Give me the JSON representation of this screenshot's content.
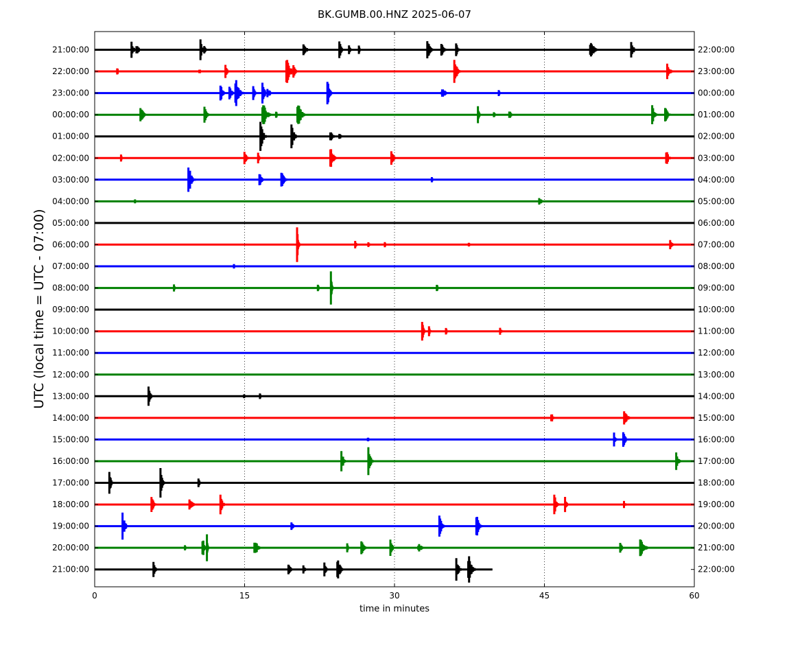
{
  "chart_data": {
    "type": "line",
    "title": "BK.GUMB.00.HNZ 2025-06-07",
    "xlabel": "time in minutes",
    "ylabel": "UTC (local time = UTC - 07:00)",
    "xlim": [
      0,
      60
    ],
    "x_ticks": [
      0,
      15,
      30,
      45,
      60
    ],
    "x_tick_labels": [
      "0",
      "15",
      "30",
      "45",
      "60"
    ],
    "grid": "vertical dotted lines at 15, 30, 45",
    "color_cycle": [
      "#000000",
      "#ff0000",
      "#0000ff",
      "#008000"
    ],
    "rows": [
      {
        "left_label": "21:00:00",
        "right_label": "22:00:00",
        "end_minute": 60,
        "events": [
          {
            "t": 3.6,
            "amp": 0.25,
            "dur": 0.6
          },
          {
            "t": 4.1,
            "amp": 0.15,
            "dur": 0.8
          },
          {
            "t": 10.5,
            "amp": 0.35,
            "dur": 0.5
          },
          {
            "t": 10.9,
            "amp": 0.15,
            "dur": 0.4
          },
          {
            "t": 20.8,
            "amp": 0.25,
            "dur": 0.7
          },
          {
            "t": 24.4,
            "amp": 0.4,
            "dur": 0.5
          },
          {
            "t": 25.4,
            "amp": 0.2,
            "dur": 0.3
          },
          {
            "t": 26.4,
            "amp": 0.2,
            "dur": 0.2
          },
          {
            "t": 33.2,
            "amp": 0.3,
            "dur": 0.8
          },
          {
            "t": 34.6,
            "amp": 0.25,
            "dur": 0.7
          },
          {
            "t": 36.1,
            "amp": 0.35,
            "dur": 0.4
          },
          {
            "t": 49.5,
            "amp": 0.3,
            "dur": 0.9
          },
          {
            "t": 53.6,
            "amp": 0.35,
            "dur": 0.6
          }
        ]
      },
      {
        "left_label": "22:00:00",
        "right_label": "23:00:00",
        "end_minute": 60,
        "events": [
          {
            "t": 2.2,
            "amp": 0.15,
            "dur": 0.3
          },
          {
            "t": 10.4,
            "amp": 0.1,
            "dur": 0.4
          },
          {
            "t": 13.0,
            "amp": 0.2,
            "dur": 0.6
          },
          {
            "t": 19.1,
            "amp": 0.45,
            "dur": 0.9
          },
          {
            "t": 19.8,
            "amp": 0.2,
            "dur": 0.6
          },
          {
            "t": 35.9,
            "amp": 0.45,
            "dur": 0.7
          },
          {
            "t": 57.2,
            "amp": 0.25,
            "dur": 0.7
          }
        ]
      },
      {
        "left_label": "23:00:00",
        "right_label": "00:00:00",
        "end_minute": 60,
        "events": [
          {
            "t": 12.5,
            "amp": 0.35,
            "dur": 0.6
          },
          {
            "t": 13.4,
            "amp": 0.3,
            "dur": 0.6
          },
          {
            "t": 14.0,
            "amp": 0.5,
            "dur": 0.9
          },
          {
            "t": 15.8,
            "amp": 0.25,
            "dur": 0.4
          },
          {
            "t": 16.7,
            "amp": 0.35,
            "dur": 0.6
          },
          {
            "t": 17.2,
            "amp": 0.2,
            "dur": 0.7
          },
          {
            "t": 23.2,
            "amp": 0.45,
            "dur": 0.6
          },
          {
            "t": 34.6,
            "amp": 0.12,
            "dur": 1.5
          },
          {
            "t": 40.4,
            "amp": 0.18,
            "dur": 0.2
          }
        ]
      },
      {
        "left_label": "00:00:00",
        "right_label": "01:00:00",
        "end_minute": 60,
        "events": [
          {
            "t": 4.5,
            "amp": 0.25,
            "dur": 0.8
          },
          {
            "t": 10.9,
            "amp": 0.3,
            "dur": 0.6
          },
          {
            "t": 16.7,
            "amp": 0.4,
            "dur": 1.0
          },
          {
            "t": 18.1,
            "amp": 0.15,
            "dur": 0.3
          },
          {
            "t": 20.2,
            "amp": 0.4,
            "dur": 1.0
          },
          {
            "t": 38.3,
            "amp": 0.3,
            "dur": 0.3
          },
          {
            "t": 39.9,
            "amp": 0.15,
            "dur": 0.3
          },
          {
            "t": 41.4,
            "amp": 0.15,
            "dur": 0.6
          },
          {
            "t": 55.7,
            "amp": 0.35,
            "dur": 0.6
          },
          {
            "t": 57.0,
            "amp": 0.25,
            "dur": 0.8
          }
        ]
      },
      {
        "left_label": "01:00:00",
        "right_label": "02:00:00",
        "end_minute": 60,
        "events": [
          {
            "t": 16.5,
            "amp": 0.5,
            "dur": 0.7
          },
          {
            "t": 19.6,
            "amp": 0.4,
            "dur": 0.7
          },
          {
            "t": 23.5,
            "amp": 0.15,
            "dur": 0.8
          },
          {
            "t": 24.4,
            "amp": 0.12,
            "dur": 0.5
          }
        ]
      },
      {
        "left_label": "02:00:00",
        "right_label": "03:00:00",
        "end_minute": 60,
        "events": [
          {
            "t": 2.6,
            "amp": 0.15,
            "dur": 0.2
          },
          {
            "t": 14.9,
            "amp": 0.35,
            "dur": 0.5
          },
          {
            "t": 16.3,
            "amp": 0.2,
            "dur": 0.3
          },
          {
            "t": 23.5,
            "amp": 0.35,
            "dur": 0.8
          },
          {
            "t": 29.6,
            "amp": 0.35,
            "dur": 0.6
          },
          {
            "t": 57.1,
            "amp": 0.3,
            "dur": 0.6
          }
        ]
      },
      {
        "left_label": "03:00:00",
        "right_label": "04:00:00",
        "end_minute": 60,
        "events": [
          {
            "t": 9.3,
            "amp": 0.45,
            "dur": 0.8
          },
          {
            "t": 16.4,
            "amp": 0.2,
            "dur": 0.8
          },
          {
            "t": 18.6,
            "amp": 0.25,
            "dur": 0.8
          },
          {
            "t": 33.7,
            "amp": 0.1,
            "dur": 0.2
          }
        ]
      },
      {
        "left_label": "04:00:00",
        "right_label": "05:00:00",
        "end_minute": 60,
        "events": [
          {
            "t": 4.0,
            "amp": 0.1,
            "dur": 0.2
          },
          {
            "t": 44.4,
            "amp": 0.12,
            "dur": 0.8
          }
        ]
      },
      {
        "left_label": "05:00:00",
        "right_label": "06:00:00",
        "end_minute": 60,
        "events": []
      },
      {
        "left_label": "06:00:00",
        "right_label": "07:00:00",
        "end_minute": 60,
        "events": [
          {
            "t": 20.2,
            "amp": 0.65,
            "dur": 0.3
          },
          {
            "t": 26.0,
            "amp": 0.15,
            "dur": 0.4
          },
          {
            "t": 27.3,
            "amp": 0.12,
            "dur": 0.5
          },
          {
            "t": 29.0,
            "amp": 0.12,
            "dur": 0.2
          },
          {
            "t": 37.4,
            "amp": 0.1,
            "dur": 0.2
          },
          {
            "t": 57.5,
            "amp": 0.2,
            "dur": 0.6
          }
        ]
      },
      {
        "left_label": "07:00:00",
        "right_label": "08:00:00",
        "end_minute": 60,
        "events": [
          {
            "t": 13.9,
            "amp": 0.08,
            "dur": 0.2
          }
        ]
      },
      {
        "left_label": "08:00:00",
        "right_label": "09:00:00",
        "end_minute": 60,
        "events": [
          {
            "t": 7.9,
            "amp": 0.12,
            "dur": 0.2
          },
          {
            "t": 22.3,
            "amp": 0.15,
            "dur": 0.2
          },
          {
            "t": 23.6,
            "amp": 0.6,
            "dur": 0.2
          },
          {
            "t": 34.2,
            "amp": 0.18,
            "dur": 0.2
          }
        ]
      },
      {
        "left_label": "09:00:00",
        "right_label": "10:00:00",
        "end_minute": 60,
        "events": []
      },
      {
        "left_label": "10:00:00",
        "right_label": "11:00:00",
        "end_minute": 60,
        "events": [
          {
            "t": 32.7,
            "amp": 0.35,
            "dur": 0.4
          },
          {
            "t": 33.4,
            "amp": 0.2,
            "dur": 0.3
          },
          {
            "t": 35.1,
            "amp": 0.12,
            "dur": 0.3
          },
          {
            "t": 40.5,
            "amp": 0.15,
            "dur": 0.4
          }
        ]
      },
      {
        "left_label": "11:00:00",
        "right_label": "12:00:00",
        "end_minute": 60,
        "events": []
      },
      {
        "left_label": "12:00:00",
        "right_label": "13:00:00",
        "end_minute": 60,
        "events": []
      },
      {
        "left_label": "13:00:00",
        "right_label": "14:00:00",
        "end_minute": 60,
        "events": [
          {
            "t": 5.3,
            "amp": 0.35,
            "dur": 0.6
          },
          {
            "t": 14.9,
            "amp": 0.08,
            "dur": 0.3
          },
          {
            "t": 16.5,
            "amp": 0.1,
            "dur": 0.2
          }
        ]
      },
      {
        "left_label": "14:00:00",
        "right_label": "15:00:00",
        "end_minute": 60,
        "events": [
          {
            "t": 45.6,
            "amp": 0.18,
            "dur": 0.6
          },
          {
            "t": 52.9,
            "amp": 0.25,
            "dur": 0.8
          }
        ]
      },
      {
        "left_label": "15:00:00",
        "right_label": "16:00:00",
        "end_minute": 60,
        "events": [
          {
            "t": 27.3,
            "amp": 0.1,
            "dur": 0.2
          },
          {
            "t": 51.9,
            "amp": 0.25,
            "dur": 0.4
          },
          {
            "t": 52.8,
            "amp": 0.3,
            "dur": 0.6
          }
        ]
      },
      {
        "left_label": "16:00:00",
        "right_label": "17:00:00",
        "end_minute": 60,
        "events": [
          {
            "t": 24.6,
            "amp": 0.35,
            "dur": 0.6
          },
          {
            "t": 27.3,
            "amp": 0.4,
            "dur": 0.7
          },
          {
            "t": 58.1,
            "amp": 0.25,
            "dur": 0.7
          }
        ]
      },
      {
        "left_label": "17:00:00",
        "right_label": "18:00:00",
        "end_minute": 60,
        "events": [
          {
            "t": 1.4,
            "amp": 0.55,
            "dur": 0.4
          },
          {
            "t": 6.5,
            "amp": 0.5,
            "dur": 0.5
          },
          {
            "t": 10.3,
            "amp": 0.15,
            "dur": 0.6
          }
        ]
      },
      {
        "left_label": "18:00:00",
        "right_label": "19:00:00",
        "end_minute": 60,
        "events": [
          {
            "t": 5.6,
            "amp": 0.35,
            "dur": 0.6
          },
          {
            "t": 9.4,
            "amp": 0.2,
            "dur": 0.9
          },
          {
            "t": 12.5,
            "amp": 0.3,
            "dur": 0.6
          },
          {
            "t": 45.9,
            "amp": 0.35,
            "dur": 0.6
          },
          {
            "t": 47.0,
            "amp": 0.3,
            "dur": 0.4
          },
          {
            "t": 52.9,
            "amp": 0.12,
            "dur": 0.4
          }
        ]
      },
      {
        "left_label": "19:00:00",
        "right_label": "20:00:00",
        "end_minute": 60,
        "events": [
          {
            "t": 2.7,
            "amp": 0.4,
            "dur": 0.7
          },
          {
            "t": 19.6,
            "amp": 0.15,
            "dur": 0.7
          },
          {
            "t": 34.4,
            "amp": 0.4,
            "dur": 0.7
          },
          {
            "t": 38.1,
            "amp": 0.4,
            "dur": 0.7
          }
        ]
      },
      {
        "left_label": "20:00:00",
        "right_label": "21:00:00",
        "end_minute": 60,
        "events": [
          {
            "t": 9.0,
            "amp": 0.12,
            "dur": 0.2
          },
          {
            "t": 10.7,
            "amp": 0.35,
            "dur": 0.6
          },
          {
            "t": 11.2,
            "amp": 0.45,
            "dur": 0.2
          },
          {
            "t": 15.9,
            "amp": 0.3,
            "dur": 0.8
          },
          {
            "t": 25.2,
            "amp": 0.15,
            "dur": 0.4
          },
          {
            "t": 26.6,
            "amp": 0.25,
            "dur": 0.7
          },
          {
            "t": 29.5,
            "amp": 0.25,
            "dur": 0.6
          },
          {
            "t": 32.3,
            "amp": 0.15,
            "dur": 1.0
          },
          {
            "t": 52.5,
            "amp": 0.2,
            "dur": 0.5
          },
          {
            "t": 54.5,
            "amp": 0.35,
            "dur": 1.0
          }
        ]
      },
      {
        "left_label": "21:00:00",
        "right_label": "22:00:00",
        "end_minute": 39.8,
        "events": [
          {
            "t": 5.8,
            "amp": 0.25,
            "dur": 0.5
          },
          {
            "t": 19.3,
            "amp": 0.25,
            "dur": 0.6
          },
          {
            "t": 20.8,
            "amp": 0.15,
            "dur": 0.5
          },
          {
            "t": 22.9,
            "amp": 0.35,
            "dur": 0.5
          },
          {
            "t": 24.2,
            "amp": 0.35,
            "dur": 0.8
          },
          {
            "t": 36.1,
            "amp": 0.4,
            "dur": 0.6
          },
          {
            "t": 37.3,
            "amp": 0.5,
            "dur": 0.8
          }
        ]
      }
    ]
  }
}
